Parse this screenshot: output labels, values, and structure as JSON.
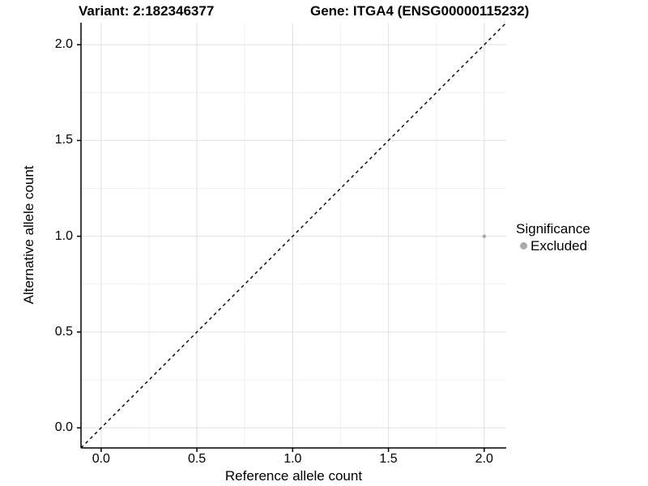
{
  "chart_data": {
    "type": "scatter",
    "title_left": "Variant: 2:182346377",
    "title_right": "Gene: ITGA4 (ENSG00000115232)",
    "xlabel": "Reference allele count",
    "ylabel": "Alternative allele count",
    "xlim": [
      -0.105,
      2.115
    ],
    "ylim": [
      -0.105,
      2.115
    ],
    "x_ticks": {
      "values": [
        0,
        0.5,
        1,
        1.5,
        2
      ],
      "labels": [
        "0.0",
        "0.5",
        "1.0",
        "1.5",
        "2.0"
      ]
    },
    "y_ticks": {
      "values": [
        0,
        0.5,
        1,
        1.5,
        2
      ],
      "labels": [
        "0.0",
        "0.5",
        "1.0",
        "1.5",
        "2.0"
      ]
    },
    "x_minor": [
      0.25,
      0.75,
      1.25,
      1.75
    ],
    "y_minor": [
      0.25,
      0.75,
      1.25,
      1.75
    ],
    "grid": {
      "shown": true,
      "major_color": "#e3e3e3",
      "minor_color": "#f1f1f1"
    },
    "axis_color": "#000000",
    "reference_line": {
      "equation": "y = x",
      "style": "dashed",
      "color": "#000000"
    },
    "legend": {
      "title": "Significance",
      "position": "right",
      "items": [
        {
          "label": "Excluded",
          "color": "#aaaaaa"
        }
      ]
    },
    "series": [
      {
        "name": "Excluded",
        "color": "#aaaaaa",
        "point_radius": 2.2,
        "points": [
          {
            "x": 2.0,
            "y": 1.0
          }
        ]
      }
    ]
  }
}
